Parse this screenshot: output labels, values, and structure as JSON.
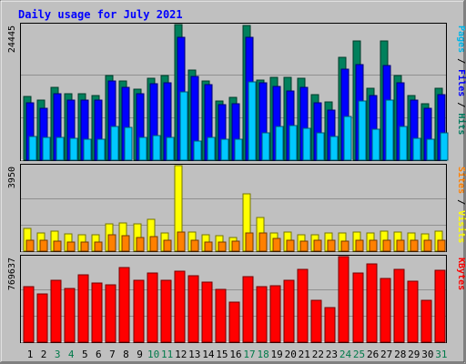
{
  "chart_data": {
    "type": "bar",
    "title": "Daily usage for July 2021",
    "x": [
      "1",
      "2",
      "3",
      "4",
      "5",
      "6",
      "7",
      "8",
      "9",
      "10",
      "11",
      "12",
      "13",
      "14",
      "15",
      "16",
      "17",
      "18",
      "19",
      "20",
      "21",
      "22",
      "23",
      "24",
      "25",
      "26",
      "27",
      "28",
      "29",
      "30",
      "31"
    ],
    "weekend_days": [
      "3",
      "4",
      "10",
      "11",
      "17",
      "18",
      "24",
      "25",
      "31"
    ],
    "panels": [
      {
        "id": "hits",
        "max_label": "24445",
        "ylim": [
          0,
          24445
        ],
        "side_labels": [
          {
            "text": "Pages",
            "color": "#00b5e8"
          },
          {
            "text": " / ",
            "color": "#000000"
          },
          {
            "text": "Files",
            "color": "#0000ff"
          },
          {
            "text": " / ",
            "color": "#000000"
          },
          {
            "text": "Hits",
            "color": "#007a5e"
          }
        ],
        "series": [
          {
            "name": "Hits",
            "color": "#00805c",
            "values": [
              11500,
              10800,
              13200,
              12000,
              11900,
              11700,
              15300,
              14300,
              12800,
              14700,
              15300,
              24400,
              16300,
              14200,
              10700,
              11300,
              24200,
              14500,
              14900,
              14900,
              14700,
              11800,
              10500,
              18600,
              21500,
              13000,
              21500,
              15300,
              11600,
              10200,
              13000
            ]
          },
          {
            "name": "Files",
            "color": "#0000ff",
            "values": [
              10400,
              9400,
              12000,
              10900,
              10900,
              10900,
              14300,
              13200,
              12000,
              13700,
              13900,
              22200,
              15100,
              13600,
              10000,
              10200,
              22100,
              13900,
              13300,
              12500,
              13100,
              10400,
              9000,
              16400,
              17300,
              11700,
              17000,
              14000,
              10900,
              9400,
              11800
            ]
          },
          {
            "name": "Pages",
            "color": "#00c8ff",
            "values": [
              4300,
              4100,
              4100,
              3900,
              3800,
              3800,
              6000,
              5900,
              4100,
              4500,
              4100,
              12300,
              3500,
              4100,
              3800,
              3800,
              14100,
              4900,
              6000,
              6200,
              5700,
              5000,
              4300,
              7800,
              10600,
              5500,
              10900,
              6000,
              3900,
              3700,
              4900
            ]
          }
        ]
      },
      {
        "id": "visits",
        "max_label": "3950",
        "ylim": [
          0,
          3950
        ],
        "side_labels": [
          {
            "text": "Sites",
            "color": "#ff8000"
          },
          {
            "text": " / ",
            "color": "#000000"
          },
          {
            "text": "Visits",
            "color": "#ffff00"
          }
        ],
        "series": [
          {
            "name": "Visits",
            "color": "#ffff00",
            "values": [
              1050,
              840,
              920,
              780,
              760,
              760,
              1250,
              1300,
              1240,
              1480,
              840,
              3950,
              880,
              770,
              710,
              610,
              2630,
              1560,
              840,
              890,
              770,
              740,
              820,
              840,
              900,
              840,
              930,
              870,
              840,
              790,
              920
            ]
          },
          {
            "name": "Sites",
            "color": "#ff8000",
            "values": [
              520,
              520,
              470,
              420,
              420,
              420,
              740,
              730,
              640,
              680,
              510,
              900,
              520,
              420,
              420,
              460,
              850,
              820,
              570,
              520,
              470,
              520,
              520,
              470,
              490,
              520,
              500,
              520,
              500,
              500,
              520
            ]
          }
        ]
      },
      {
        "id": "kbytes",
        "max_label": "769637",
        "ylim": [
          0,
          769637
        ],
        "side_labels": [
          {
            "text": "KBytes",
            "color": "#ff0000"
          }
        ],
        "series": [
          {
            "name": "KBytes",
            "color": "#ff0000",
            "values": [
              502000,
              431000,
              560000,
              487000,
              608000,
              530000,
              516000,
              669000,
              560000,
              620000,
              560000,
              638000,
              598000,
              543000,
              472000,
              357000,
              588000,
              496000,
              511000,
              559000,
              651000,
              373000,
              313000,
              769637,
              623000,
              703000,
              572000,
              653000,
              549000,
              374000,
              643000
            ]
          }
        ]
      }
    ]
  }
}
